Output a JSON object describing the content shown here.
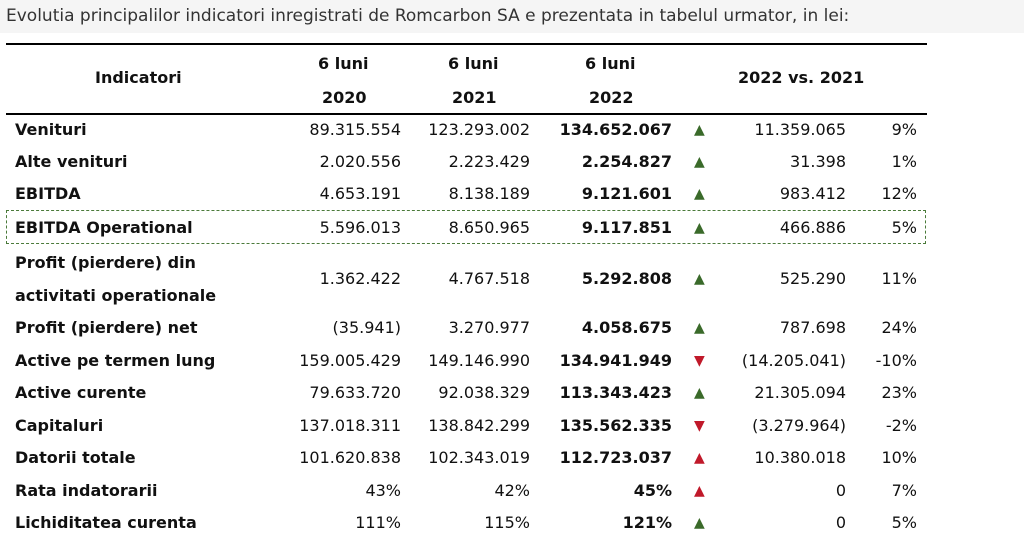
{
  "caption": "Evolutia principalilor indicatori inregistrati de Romcarbon SA e prezentata in tabelul urmator, in lei:",
  "header": {
    "indicatori": "Indicatori",
    "col2020_line1": "6 luni",
    "col2020_line2": "2020",
    "col2021_line1": "6 luni",
    "col2021_line2": "2021",
    "col2022_line1": "6 luni",
    "col2022_line2": "2022",
    "comparison": "2022 vs. 2021"
  },
  "rows": [
    {
      "label": "Venituri",
      "v2020": "89.315.554",
      "v2021": "123.293.002",
      "v2022": "134.652.067",
      "arrow": "▲",
      "diff": "11.359.065",
      "pct": "9%"
    },
    {
      "label": "Alte venituri",
      "v2020": "2.020.556",
      "v2021": "2.223.429",
      "v2022": "2.254.827",
      "arrow": "▲",
      "diff": "31.398",
      "pct": "1%"
    },
    {
      "label": "EBITDA",
      "v2020": "4.653.191",
      "v2021": "8.138.189",
      "v2022": "9.121.601",
      "arrow": "▲",
      "diff": "983.412",
      "pct": "12%"
    },
    {
      "label": "EBITDA Operational",
      "v2020": "5.596.013",
      "v2021": "8.650.965",
      "v2022": "9.117.851",
      "arrow": "▲",
      "diff": "466.886",
      "pct": "5%"
    },
    {
      "label_line1": "Profit (pierdere) din",
      "label_line2": "activitati operationale",
      "v2020": "1.362.422",
      "v2021": "4.767.518",
      "v2022": "5.292.808",
      "arrow": "▲",
      "diff": "525.290",
      "pct": "11%"
    },
    {
      "label": "Profit (pierdere) net",
      "v2020": "(35.941)",
      "v2021": "3.270.977",
      "v2022": "4.058.675",
      "arrow": "▲",
      "diff": "787.698",
      "pct": "24%"
    },
    {
      "label": "Active pe termen lung",
      "v2020": "159.005.429",
      "v2021": "149.146.990",
      "v2022": "134.941.949",
      "arrow": "▼",
      "diff": "(14.205.041)",
      "pct": "-10%"
    },
    {
      "label": "Active curente",
      "v2020": "79.633.720",
      "v2021": "92.038.329",
      "v2022": "113.343.423",
      "arrow": "▲",
      "diff": "21.305.094",
      "pct": "23%"
    },
    {
      "label": "Capitaluri",
      "v2020": "137.018.311",
      "v2021": "138.842.299",
      "v2022": "135.562.335",
      "arrow": "▼",
      "diff": "(3.279.964)",
      "pct": "-2%"
    },
    {
      "label": "Datorii totale",
      "v2020": "101.620.838",
      "v2021": "102.343.019",
      "v2022": "112.723.037",
      "arrow": "▲",
      "diff": "10.380.018",
      "pct": "10%"
    },
    {
      "label": "Rata indatorarii",
      "v2020": "43%",
      "v2021": "42%",
      "v2022": "45%",
      "arrow": "▲",
      "diff": "0",
      "pct": "7%"
    },
    {
      "label": "Lichiditatea curenta",
      "v2020": "111%",
      "v2021": "115%",
      "v2022": "121%",
      "arrow": "▲",
      "diff": "0",
      "pct": "5%"
    }
  ],
  "colors": {
    "arrow_up_green": "#3a6a2a",
    "arrow_red": "#c0192a",
    "dashed_border": "#4a7a3a"
  }
}
